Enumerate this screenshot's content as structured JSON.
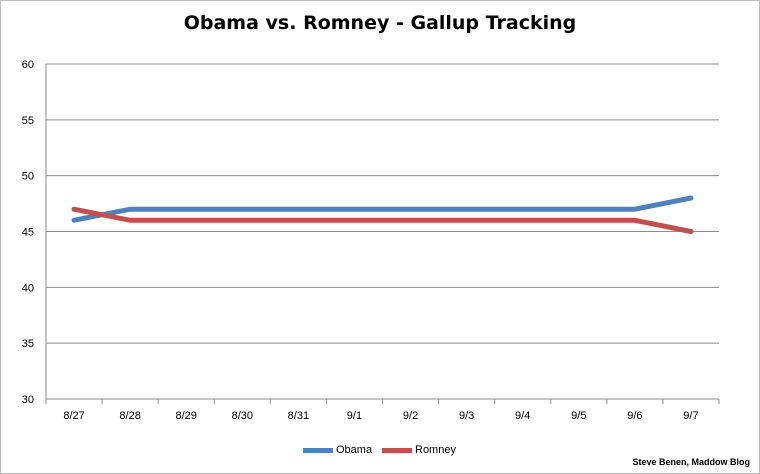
{
  "chart_data": {
    "type": "line",
    "title": "Obama vs. Romney - Gallup Tracking",
    "xlabel": "",
    "ylabel": "",
    "categories": [
      "8/27",
      "8/28",
      "8/29",
      "8/30",
      "8/31",
      "9/1",
      "9/2",
      "9/3",
      "9/4",
      "9/5",
      "9/6",
      "9/7"
    ],
    "ylim": [
      30,
      60
    ],
    "yticks": [
      30,
      35,
      40,
      45,
      50,
      55,
      60
    ],
    "grid": true,
    "legend_position": "bottom",
    "series": [
      {
        "name": "Obama",
        "color": "#4f81bd",
        "values": [
          46,
          47,
          47,
          47,
          47,
          47,
          47,
          47,
          47,
          47,
          47,
          48
        ]
      },
      {
        "name": "Romney",
        "color": "#c0504d",
        "values": [
          47,
          46,
          46,
          46,
          46,
          46,
          46,
          46,
          46,
          46,
          46,
          45
        ]
      }
    ]
  },
  "credit": "Steve Benen, Maddow Blog"
}
